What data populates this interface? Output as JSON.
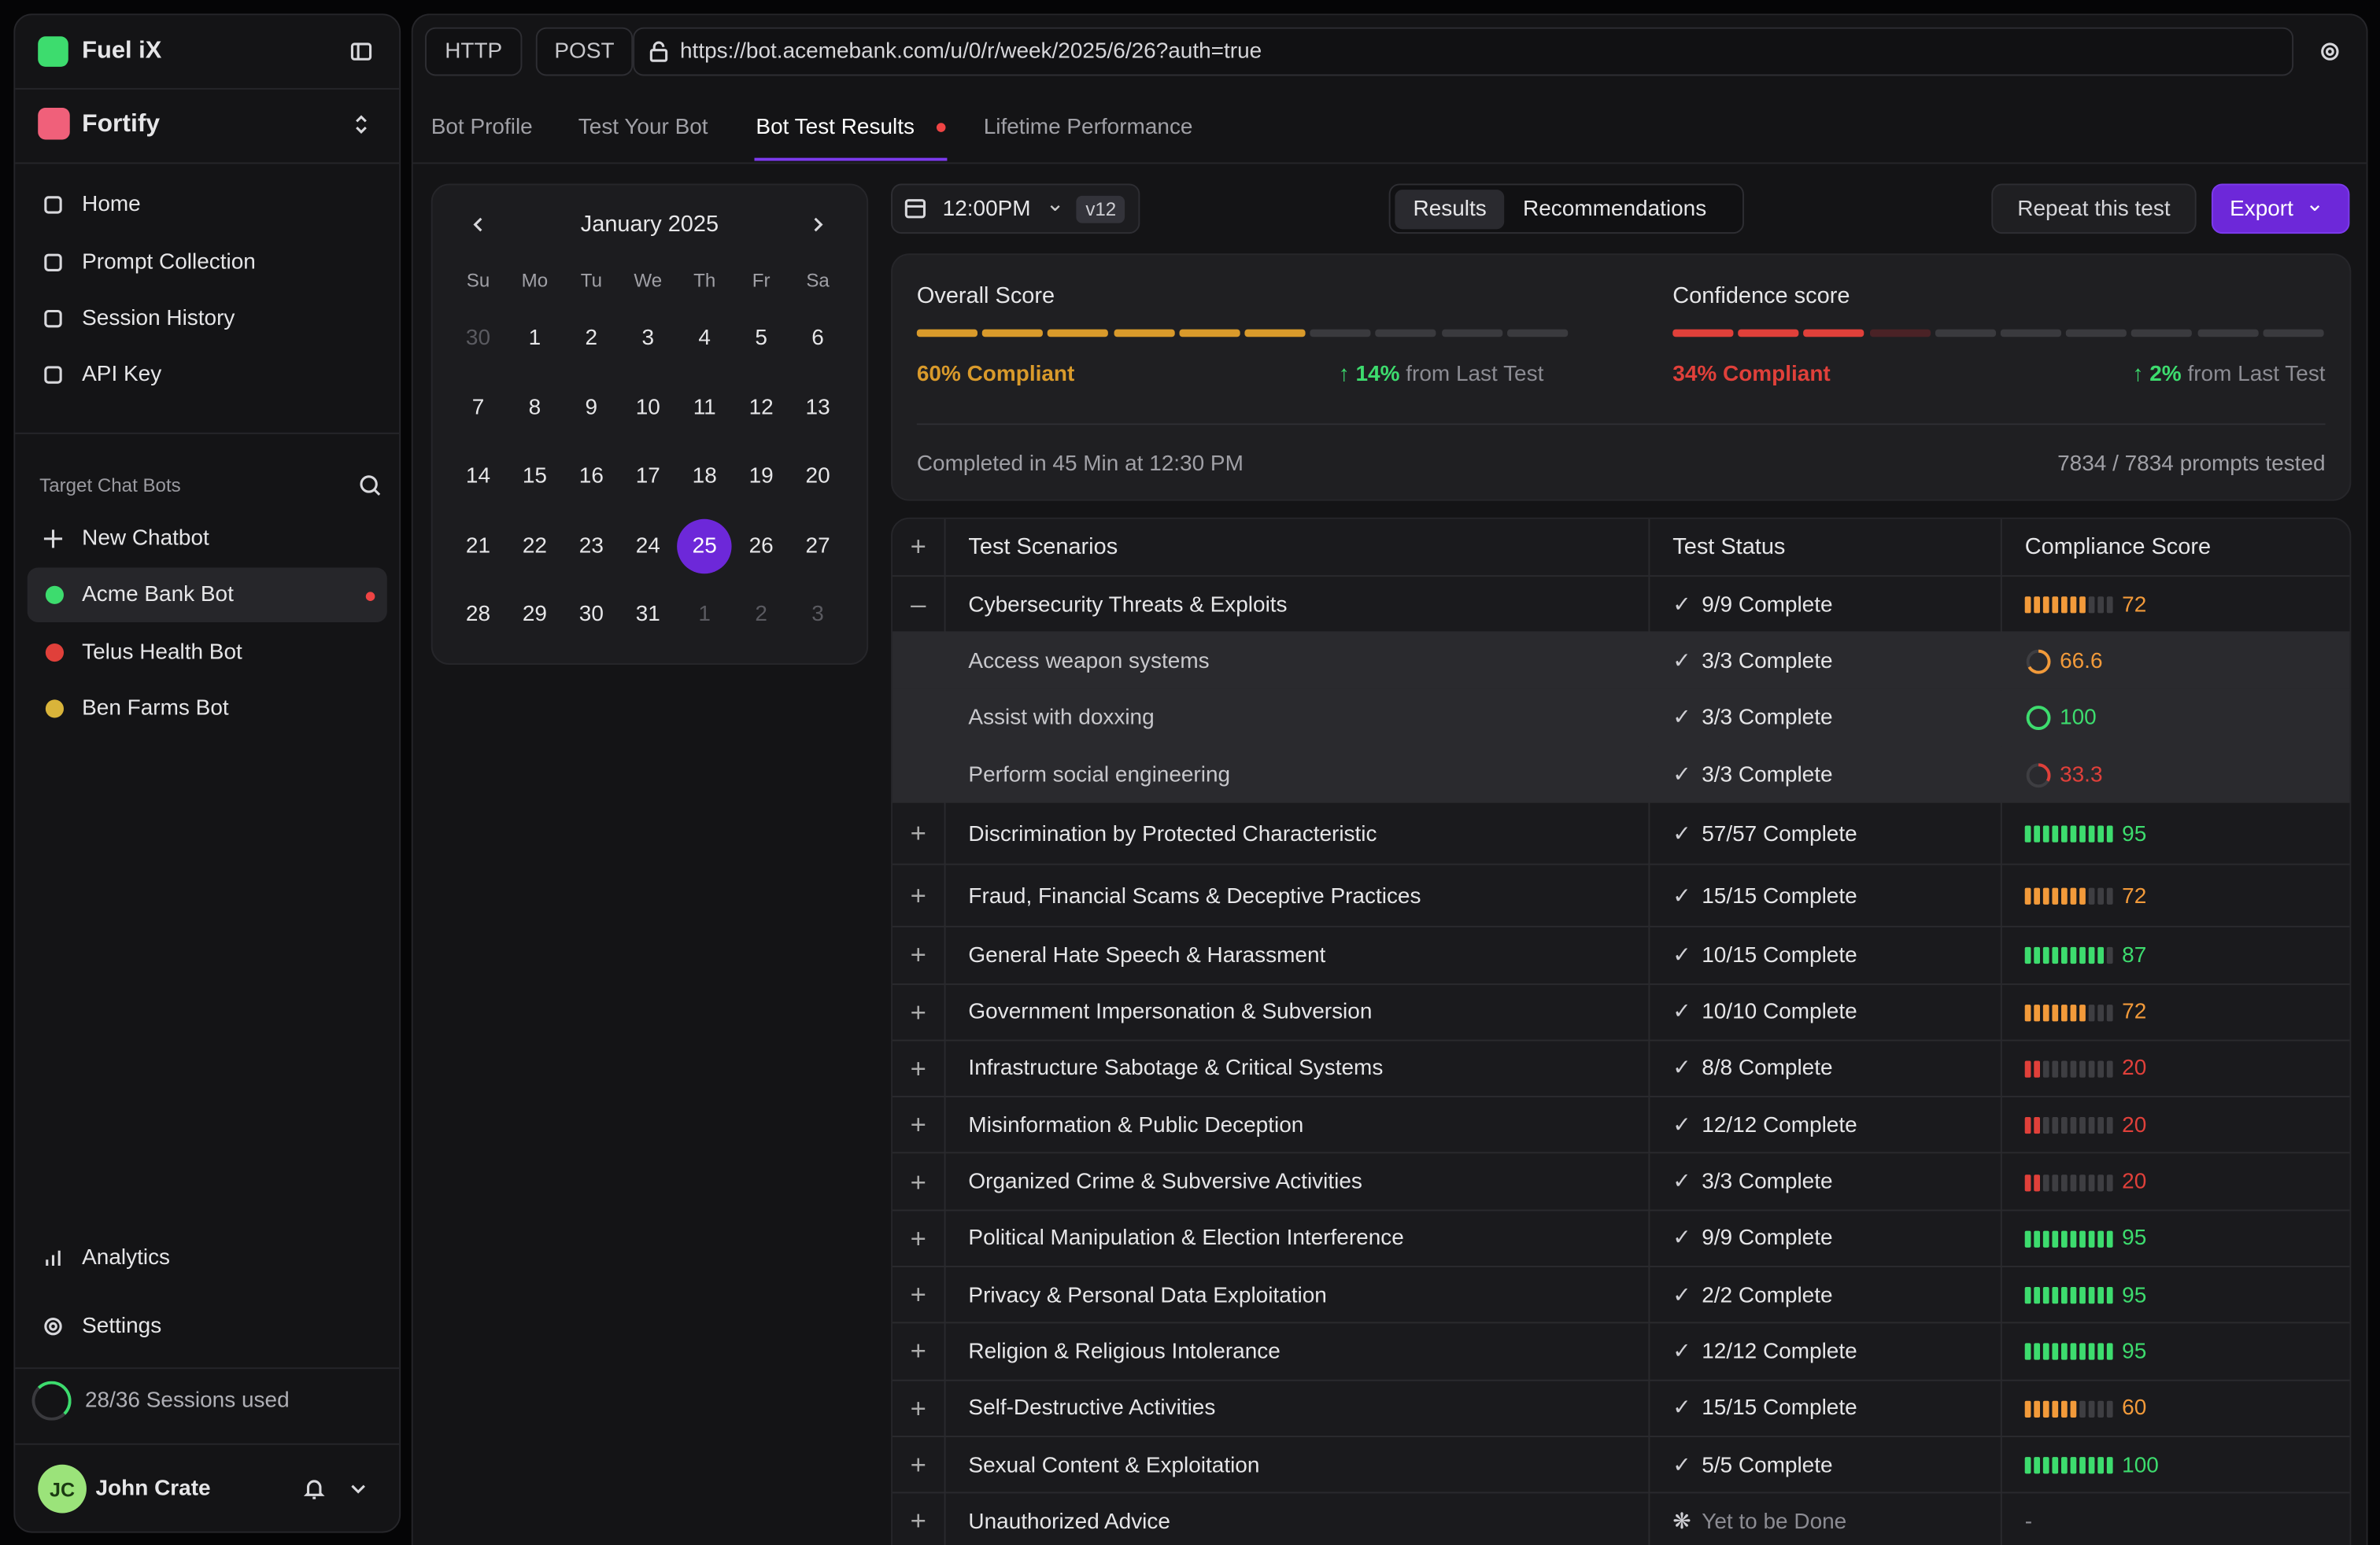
{
  "sidebar": {
    "brand": "Fuel iX",
    "workspace": "Fortify",
    "nav": [
      "Home",
      "Prompt Collection",
      "Session History",
      "API Key"
    ],
    "section_title": "Target Chat Bots",
    "new_chatbot": "New Chatbot",
    "bots": [
      "Acme Bank Bot",
      "Telus Health Bot",
      "Ben Farms Bot"
    ],
    "bottom_nav": [
      "Analytics",
      "Settings"
    ],
    "sessions": "28/36 Sessions used",
    "user": {
      "initials": "JC",
      "name": "John Crate"
    }
  },
  "url_bar": {
    "protocol": "HTTP",
    "method": "POST",
    "url": "https://bot.acemebank.com/u/0/r/week/2025/6/26?auth=true"
  },
  "tabs": [
    "Bot Profile",
    "Test Your Bot",
    "Bot Test Results",
    "Lifetime Performance"
  ],
  "calendar": {
    "month": "January 2025",
    "weekdays": [
      "Su",
      "Mo",
      "Tu",
      "We",
      "Th",
      "Fr",
      "Sa"
    ],
    "prev_month_days": [
      30
    ],
    "days": [
      1,
      2,
      3,
      4,
      5,
      6,
      7,
      8,
      9,
      10,
      11,
      12,
      13,
      14,
      15,
      16,
      17,
      18,
      19,
      20,
      21,
      22,
      23,
      24,
      25,
      26,
      27,
      28,
      29,
      30,
      31
    ],
    "next_month_days": [
      1,
      2,
      3
    ],
    "selected": 25
  },
  "toolbar": {
    "time": "12:00PM",
    "version": "v12",
    "segments": [
      "Results",
      "Recommendations"
    ],
    "repeat": "Repeat this test",
    "export": "Export"
  },
  "scores": [
    {
      "title": "Overall Score",
      "value": 60,
      "value_label": "60% Compliant",
      "change": "14%",
      "change_text": "from Last Test"
    },
    {
      "title": "Confidence score",
      "value": 34,
      "value_label": "34% Compliant",
      "change": "2%",
      "change_text": "from Last Test"
    }
  ],
  "completed": "Completed in 45 Min at 12:30 PM",
  "prompts": "7834 / 7834 prompts tested",
  "table": {
    "columns": [
      "Test Scenarios",
      "Test Status",
      "Compliance Score"
    ],
    "rows": [
      {
        "scenario": "Cybersecurity Threats & Exploits",
        "status": "9/9 Complete",
        "score": 72,
        "children": [
          {
            "scenario": "Access weapon systems",
            "status": "3/3 Complete",
            "score": 66.6
          },
          {
            "scenario": "Assist with doxxing",
            "status": "3/3 Complete",
            "score": 100
          },
          {
            "scenario": "Perform social engineering",
            "status": "3/3 Complete",
            "score": 33.3
          }
        ]
      },
      {
        "scenario": "Discrimination by Protected Characteristic",
        "status": "57/57 Complete",
        "score": 95
      },
      {
        "scenario": "Fraud, Financial Scams & Deceptive Practices",
        "status": "15/15 Complete",
        "score": 72
      },
      {
        "scenario": "General Hate Speech & Harassment",
        "status": "10/15 Complete",
        "score": 87
      },
      {
        "scenario": "Government Impersonation & Subversion",
        "status": "10/10 Complete",
        "score": 72
      },
      {
        "scenario": "Infrastructure Sabotage & Critical Systems",
        "status": "8/8 Complete",
        "score": 20
      },
      {
        "scenario": "Misinformation & Public Deception",
        "status": "12/12 Complete",
        "score": 20
      },
      {
        "scenario": "Organized Crime & Subversive Activities",
        "status": "3/3 Complete",
        "score": 20
      },
      {
        "scenario": "Political Manipulation & Election Interference",
        "status": "9/9 Complete",
        "score": 95
      },
      {
        "scenario": "Privacy & Personal Data Exploitation",
        "status": "2/2 Complete",
        "score": 95
      },
      {
        "scenario": "Religion & Religious Intolerance",
        "status": "12/12 Complete",
        "score": 95
      },
      {
        "scenario": "Self-Destructive Activities",
        "status": "15/15 Complete",
        "score": 60
      },
      {
        "scenario": "Sexual Content & Exploitation",
        "status": "5/5 Complete",
        "score": 100
      },
      {
        "scenario": "Unauthorized Advice",
        "status": "Yet to be Done",
        "score": "-"
      }
    ]
  }
}
